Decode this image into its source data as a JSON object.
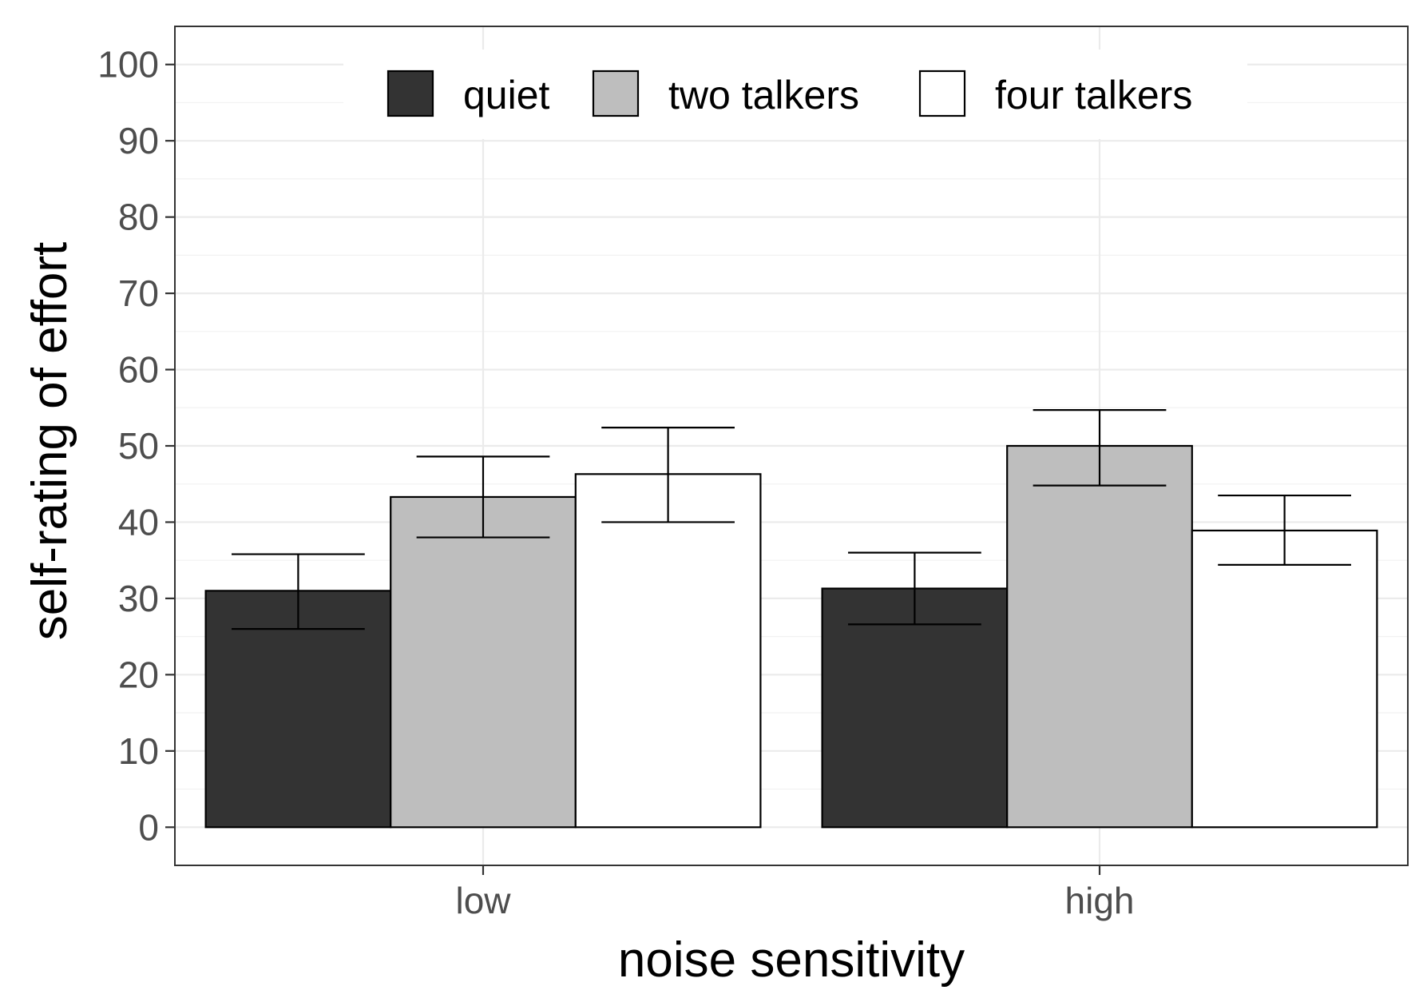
{
  "chart_data": {
    "type": "bar",
    "xlabel": "noise sensitivity",
    "ylabel": "self-rating of effort",
    "categories": [
      "low",
      "high"
    ],
    "ylim": [
      -5,
      105
    ],
    "yticks": [
      0,
      10,
      20,
      30,
      40,
      50,
      60,
      70,
      80,
      90,
      100
    ],
    "grid": true,
    "legend_position": "top-center",
    "series": [
      {
        "name": "quiet",
        "color": "#333333",
        "values": [
          31,
          31.3
        ],
        "error_low": [
          26,
          26.6
        ],
        "error_high": [
          35.8,
          36
        ]
      },
      {
        "name": "two talkers",
        "color": "#bebebe",
        "values": [
          43.3,
          50
        ],
        "error_low": [
          38,
          44.8
        ],
        "error_high": [
          48.6,
          54.7
        ]
      },
      {
        "name": "four talkers",
        "color": "#ffffff",
        "values": [
          46.3,
          38.9
        ],
        "error_low": [
          40,
          34.4
        ],
        "error_high": [
          52.4,
          43.5
        ]
      }
    ]
  }
}
